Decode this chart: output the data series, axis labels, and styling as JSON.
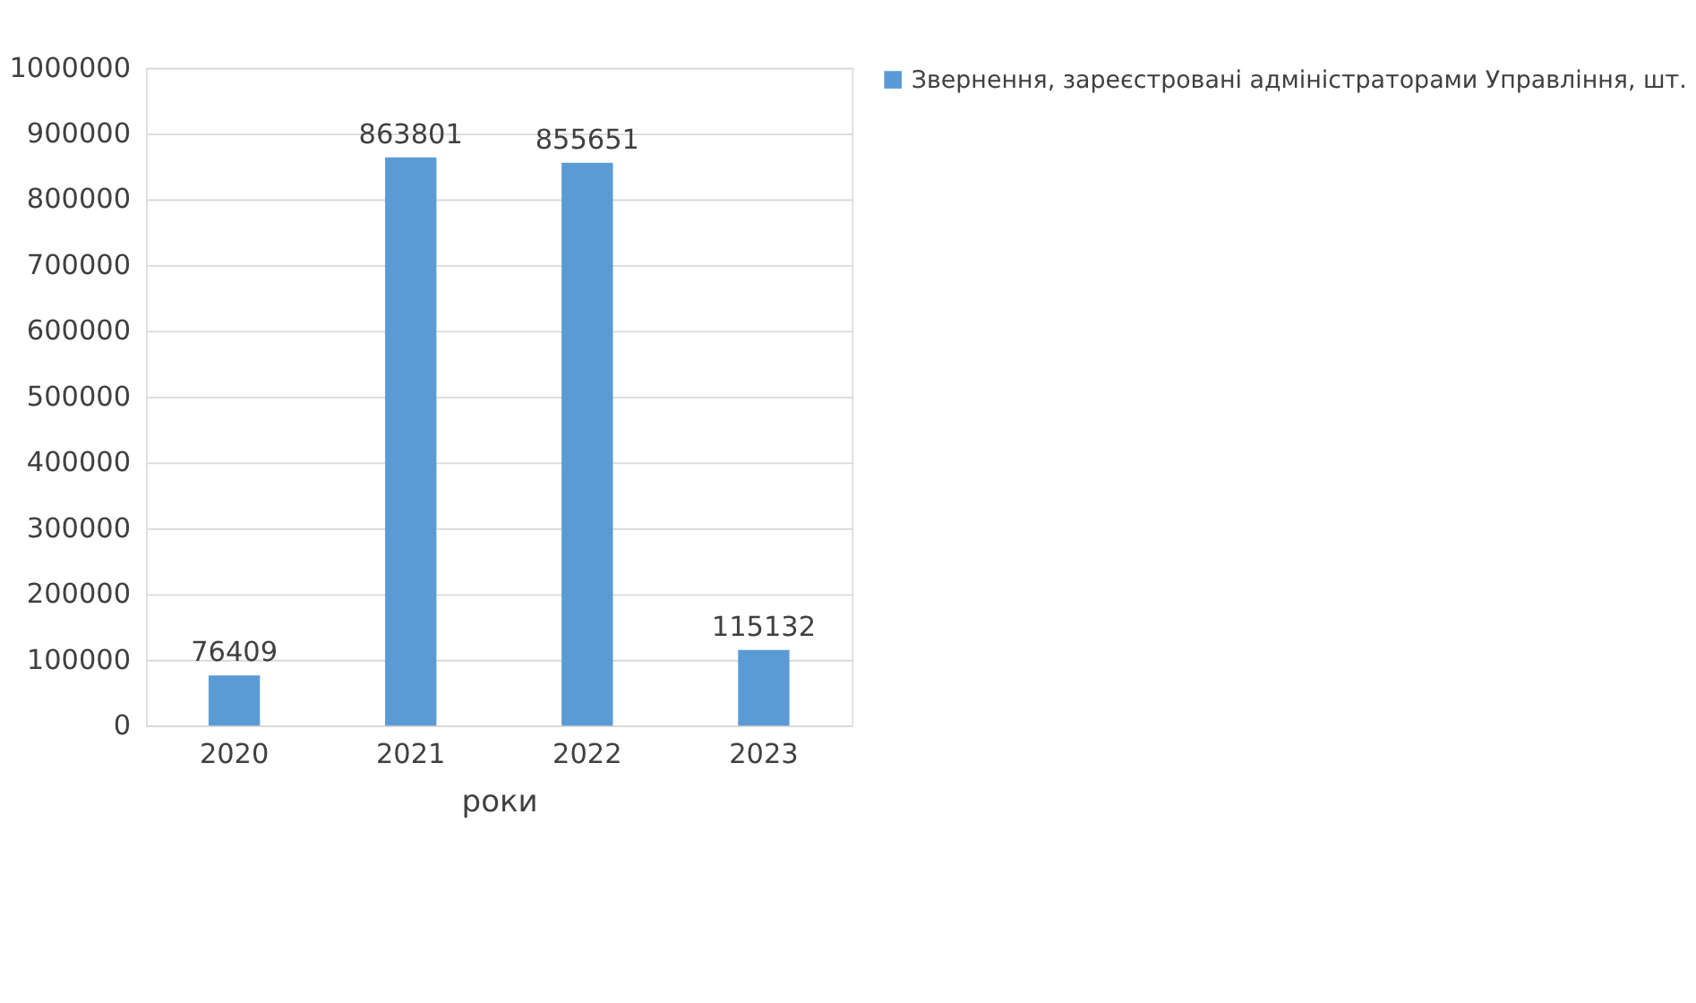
{
  "chart_data": {
    "type": "bar",
    "xlabel": "роки",
    "categories": [
      "2020",
      "2021",
      "2022",
      "2023"
    ],
    "series": [
      {
        "name": "Звернення, зареєстровані адміністраторами Управління, шт.",
        "color": "#5b9bd5",
        "values": [
          76409,
          863801,
          855651,
          115132
        ]
      }
    ],
    "ylim": [
      0,
      1000000
    ],
    "yticks": [
      0,
      100000,
      200000,
      300000,
      400000,
      500000,
      600000,
      700000,
      800000,
      900000,
      1000000
    ],
    "grid": "y",
    "legend": "right",
    "data_labels": true
  }
}
